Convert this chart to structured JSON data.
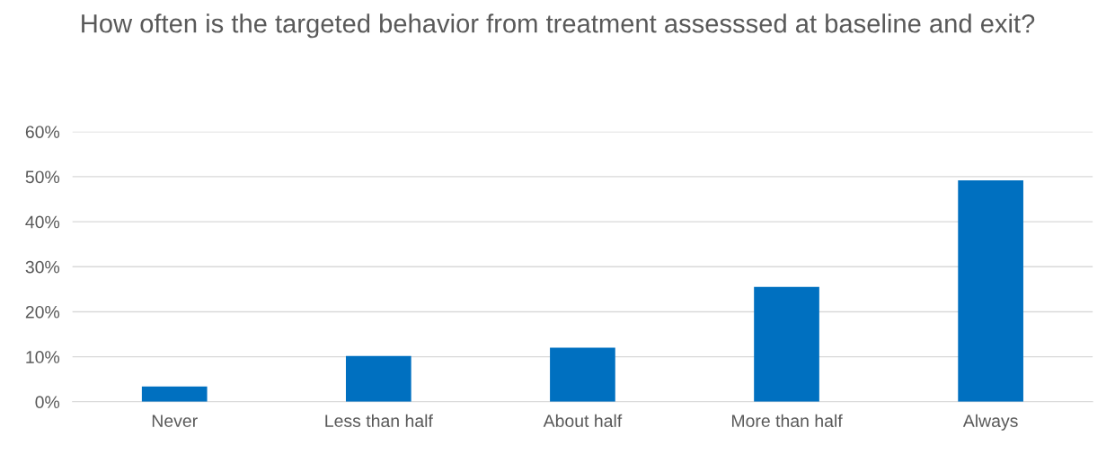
{
  "chart_data": {
    "type": "bar",
    "title": "How often is the targeted behavior from treatment assesssed at baseline and exit?",
    "categories": [
      "Never",
      "Less than half",
      "About half",
      "More than half",
      "Always"
    ],
    "values": [
      3.4,
      10.2,
      12,
      25.5,
      49.2
    ],
    "color": "#0070c0",
    "ylim": [
      0,
      60
    ],
    "yticks": [
      {
        "value": 0,
        "label": "0%"
      },
      {
        "value": 10,
        "label": "10%"
      },
      {
        "value": 20,
        "label": "20%"
      },
      {
        "value": 30,
        "label": "30%"
      },
      {
        "value": 40,
        "label": "40%"
      },
      {
        "value": 50,
        "label": "50%"
      },
      {
        "value": 60,
        "label": "60%"
      }
    ],
    "grid": "y",
    "legend": false
  }
}
